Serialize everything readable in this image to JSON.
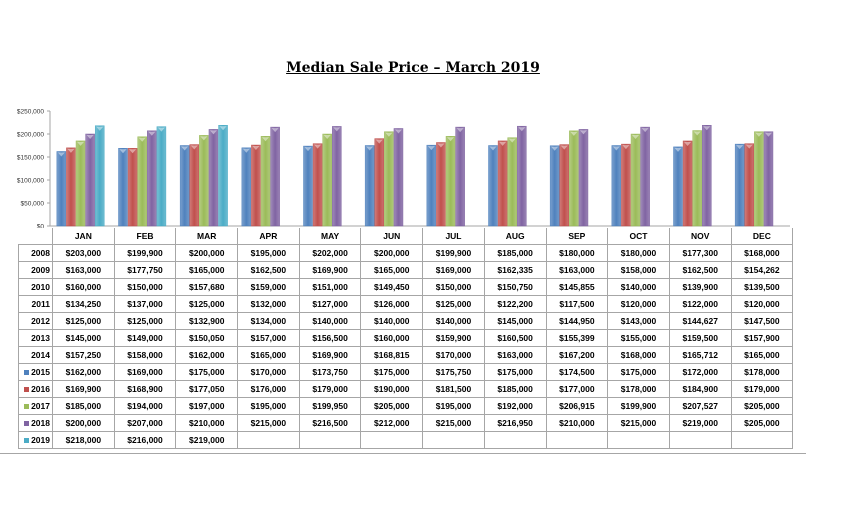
{
  "chart_data": {
    "type": "bar",
    "title": "Median Sale Price – March 2019",
    "xlabel": "",
    "ylabel": "",
    "ylim": [
      0,
      250000
    ],
    "yticks": [
      "$0",
      "$50,000",
      "$100,000",
      "$150,000",
      "$200,000",
      "$250,000"
    ],
    "ytick_values": [
      0,
      50000,
      100000,
      150000,
      200000,
      250000
    ],
    "categories": [
      "JAN",
      "FEB",
      "MAR",
      "APR",
      "MAY",
      "JUN",
      "JUL",
      "AUG",
      "SEP",
      "OCT",
      "NOV",
      "DEC"
    ],
    "legend_placement": "table-left",
    "series": [
      {
        "name": "2015",
        "color": "#4f81bd",
        "values": [
          162000,
          169000,
          175000,
          170000,
          173750,
          175000,
          175750,
          175000,
          174500,
          175000,
          172000,
          178000
        ]
      },
      {
        "name": "2016",
        "color": "#c0504d",
        "values": [
          169900,
          168900,
          177050,
          176000,
          179000,
          190000,
          181500,
          185000,
          177000,
          178000,
          184900,
          179000
        ]
      },
      {
        "name": "2017",
        "color": "#9bbb59",
        "values": [
          185000,
          194000,
          197000,
          195000,
          199950,
          205000,
          195000,
          192000,
          206915,
          199900,
          207527,
          205000
        ]
      },
      {
        "name": "2018",
        "color": "#8064a2",
        "values": [
          200000,
          207000,
          210000,
          215000,
          216500,
          212000,
          215000,
          216950,
          210000,
          215000,
          219000,
          205000
        ]
      },
      {
        "name": "2019",
        "color": "#4bacc6",
        "values": [
          218000,
          216000,
          219000,
          null,
          null,
          null,
          null,
          null,
          null,
          null,
          null,
          null
        ]
      }
    ],
    "table": {
      "rows": [
        {
          "year": "2008",
          "cells": [
            "$203,000",
            "$199,900",
            "$200,000",
            "$195,000",
            "$202,000",
            "$200,000",
            "$199,900",
            "$185,000",
            "$180,000",
            "$180,000",
            "$177,300",
            "$168,000"
          ]
        },
        {
          "year": "2009",
          "cells": [
            "$163,000",
            "$177,750",
            "$165,000",
            "$162,500",
            "$169,900",
            "$165,000",
            "$169,000",
            "$162,335",
            "$163,000",
            "$158,000",
            "$162,500",
            "$154,262"
          ]
        },
        {
          "year": "2010",
          "cells": [
            "$160,000",
            "$150,000",
            "$157,680",
            "$159,000",
            "$151,000",
            "$149,450",
            "$150,000",
            "$150,750",
            "$145,855",
            "$140,000",
            "$139,900",
            "$139,500"
          ]
        },
        {
          "year": "2011",
          "cells": [
            "$134,250",
            "$137,000",
            "$125,000",
            "$132,000",
            "$127,000",
            "$126,000",
            "$125,000",
            "$122,200",
            "$117,500",
            "$120,000",
            "$122,000",
            "$120,000"
          ]
        },
        {
          "year": "2012",
          "cells": [
            "$125,000",
            "$125,000",
            "$132,900",
            "$134,000",
            "$140,000",
            "$140,000",
            "$140,000",
            "$145,000",
            "$144,950",
            "$143,000",
            "$144,627",
            "$147,500"
          ]
        },
        {
          "year": "2013",
          "cells": [
            "$145,000",
            "$149,000",
            "$150,050",
            "$157,000",
            "$156,500",
            "$160,000",
            "$159,900",
            "$160,500",
            "$155,399",
            "$155,000",
            "$159,500",
            "$157,900"
          ]
        },
        {
          "year": "2014",
          "cells": [
            "$157,250",
            "$158,000",
            "$162,000",
            "$165,000",
            "$169,900",
            "$168,815",
            "$170,000",
            "$163,000",
            "$167,200",
            "$168,000",
            "$165,712",
            "$165,000"
          ]
        },
        {
          "year": "2015",
          "swatch": "#4f81bd",
          "cells": [
            "$162,000",
            "$169,000",
            "$175,000",
            "$170,000",
            "$173,750",
            "$175,000",
            "$175,750",
            "$175,000",
            "$174,500",
            "$175,000",
            "$172,000",
            "$178,000"
          ]
        },
        {
          "year": "2016",
          "swatch": "#c0504d",
          "cells": [
            "$169,900",
            "$168,900",
            "$177,050",
            "$176,000",
            "$179,000",
            "$190,000",
            "$181,500",
            "$185,000",
            "$177,000",
            "$178,000",
            "$184,900",
            "$179,000"
          ]
        },
        {
          "year": "2017",
          "swatch": "#9bbb59",
          "cells": [
            "$185,000",
            "$194,000",
            "$197,000",
            "$195,000",
            "$199,950",
            "$205,000",
            "$195,000",
            "$192,000",
            "$206,915",
            "$199,900",
            "$207,527",
            "$205,000"
          ]
        },
        {
          "year": "2018",
          "swatch": "#8064a2",
          "cells": [
            "$200,000",
            "$207,000",
            "$210,000",
            "$215,000",
            "$216,500",
            "$212,000",
            "$215,000",
            "$216,950",
            "$210,000",
            "$215,000",
            "$219,000",
            "$205,000"
          ]
        },
        {
          "year": "2019",
          "swatch": "#4bacc6",
          "cells": [
            "$218,000",
            "$216,000",
            "$219,000",
            "",
            "",
            "",
            "",
            "",
            "",
            "",
            "",
            ""
          ]
        }
      ]
    }
  }
}
